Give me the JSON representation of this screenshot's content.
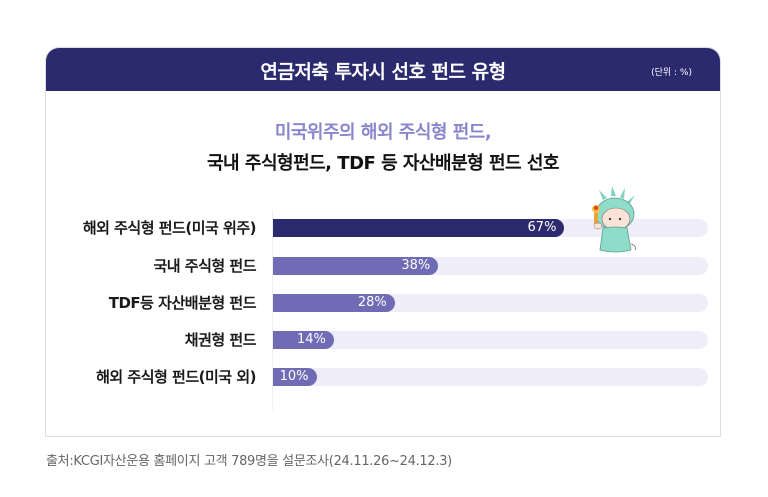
{
  "header": {
    "title": "연금저축 투자시 선호 펀드 유형",
    "unit": "(단위 : %)",
    "bg_color": "#2c2a6e"
  },
  "subtitle": {
    "line1": "미국위주의 해외 주식형 펀드,",
    "line2": "국내 주식형펀드, TDF 등 자산배분형 펀드 선호"
  },
  "rows": [
    {
      "label": "해외 주식형 펀드(미국 위주)",
      "value": 67,
      "value_label": "67%",
      "color": "#2c2a6e"
    },
    {
      "label": "국내 주식형 펀드",
      "value": 38,
      "value_label": "38%",
      "color": "#706bb5"
    },
    {
      "label": "TDF등 자산배분형 펀드",
      "value": 28,
      "value_label": "28%",
      "color": "#706bb5"
    },
    {
      "label": "채권형 펀드",
      "value": 14,
      "value_label": "14%",
      "color": "#706bb5"
    },
    {
      "label": "해외 주식형 펀드(미국 외)",
      "value": 10,
      "value_label": "10%",
      "color": "#706bb5"
    }
  ],
  "mascot": {
    "icon": "statue-of-liberty-mascot-icon"
  },
  "source": "출처:KCGI자산운용 홈페이지 고객 789명을 설문조사(24.11.26~24.12.3)",
  "chart_data": {
    "type": "bar",
    "orientation": "horizontal",
    "title": "연금저축 투자시 선호 펀드 유형",
    "subtitle": "미국위주의 해외 주식형 펀드, 국내 주식형펀드, TDF 등 자산배분형 펀드 선호",
    "unit": "%",
    "categories": [
      "해외 주식형 펀드(미국 위주)",
      "국내 주식형 펀드",
      "TDF등 자산배분형 펀드",
      "채권형 펀드",
      "해외 주식형 펀드(미국 외)"
    ],
    "values": [
      67,
      38,
      28,
      14,
      10
    ],
    "xlabel": "",
    "ylabel": "",
    "xlim": [
      0,
      100
    ],
    "grid": false,
    "legend": "none",
    "source": "출처:KCGI자산운용 홈페이지 고객 789명을 설문조사(24.11.26~24.12.3)"
  }
}
